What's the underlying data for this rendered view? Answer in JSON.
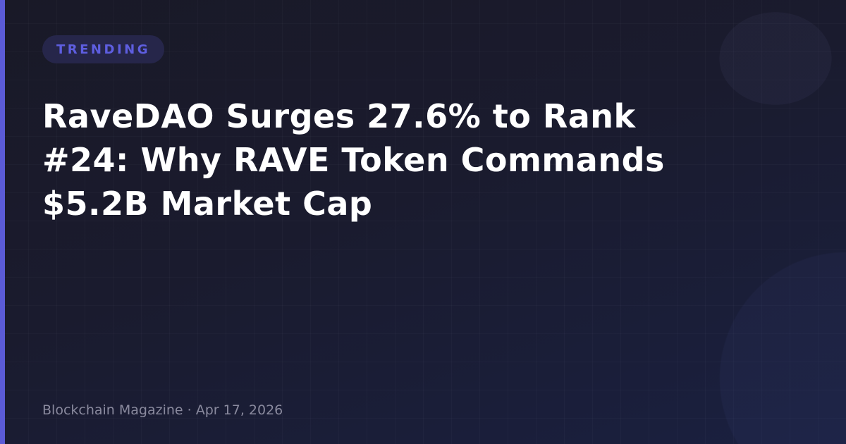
{
  "colors": {
    "accent": "#5b5bd6",
    "badge_bg": "#26264a",
    "badge_text": "#5e5ee0"
  },
  "badge": {
    "label": "TRENDING"
  },
  "article": {
    "title": "RaveDAO Surges 27.6% to Rank #24: Why RAVE Token Commands $5.2B Market Cap"
  },
  "footer": {
    "source": "Blockchain Magazine",
    "separator": " · ",
    "date": "Apr 17, 2026"
  }
}
